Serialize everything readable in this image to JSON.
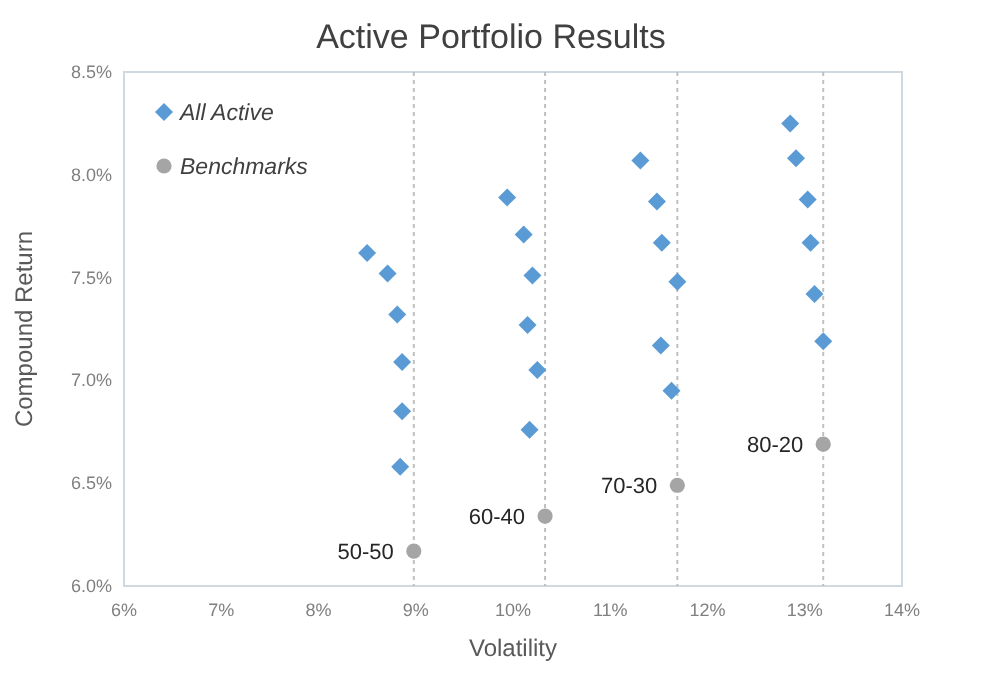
{
  "chart_data": {
    "type": "scatter",
    "title": "Active Portfolio Results",
    "xlabel": "Volatility",
    "ylabel": "Compound Return",
    "xlim": [
      6,
      14
    ],
    "xticks": [
      {
        "value": 6,
        "label": "6%"
      },
      {
        "value": 7,
        "label": "7%"
      },
      {
        "value": 8,
        "label": "8%"
      },
      {
        "value": 9,
        "label": "9%"
      },
      {
        "value": 10,
        "label": "10%"
      },
      {
        "value": 11,
        "label": "11%"
      },
      {
        "value": 12,
        "label": "12%"
      },
      {
        "value": 13,
        "label": "13%"
      },
      {
        "value": 14,
        "label": "14%"
      }
    ],
    "ylim": [
      6,
      8.5
    ],
    "yticks": [
      {
        "value": 6,
        "label": "6.0%"
      },
      {
        "value": 6.5,
        "label": "6.5%"
      },
      {
        "value": 7,
        "label": "7.0%"
      },
      {
        "value": 7.5,
        "label": "7.5%"
      },
      {
        "value": 8,
        "label": "8.0%"
      },
      {
        "value": 8.5,
        "label": "8.5%"
      }
    ],
    "grid": false,
    "legend": "top left",
    "series": [
      {
        "name": "All Active",
        "color": "#5b9bd5",
        "marker": "diamond",
        "x": [
          8.5,
          8.71,
          8.81,
          8.86,
          8.86,
          8.84,
          9.94,
          10.11,
          10.2,
          10.15,
          10.25,
          10.17,
          11.31,
          11.48,
          11.53,
          11.69,
          11.52,
          11.63,
          12.85,
          12.91,
          13.03,
          13.06,
          13.1,
          13.19
        ],
        "values": [
          7.62,
          7.52,
          7.32,
          7.09,
          6.85,
          6.58,
          7.89,
          7.71,
          7.51,
          7.27,
          7.05,
          6.76,
          8.07,
          7.87,
          7.67,
          7.48,
          7.17,
          6.95,
          8.25,
          8.08,
          7.88,
          7.67,
          7.42,
          7.19
        ]
      },
      {
        "name": "Benchmarks",
        "color": "#a5a5a5",
        "marker": "circle",
        "x": [
          8.98,
          10.33,
          11.69,
          13.19
        ],
        "values": [
          6.17,
          6.34,
          6.49,
          6.69
        ]
      }
    ],
    "annotations": [
      {
        "text": "50-50",
        "x": 8.98,
        "y": 6.17
      },
      {
        "text": "60-40",
        "x": 10.33,
        "y": 6.34
      },
      {
        "text": "70-30",
        "x": 11.69,
        "y": 6.49
      },
      {
        "text": "80-20",
        "x": 13.19,
        "y": 6.69
      }
    ],
    "ref_lines": [
      {
        "axis": "x",
        "value": 8.98,
        "line_style": "dotted",
        "color": "#bfbfbf"
      },
      {
        "axis": "x",
        "value": 10.33,
        "line_style": "dotted",
        "color": "#bfbfbf"
      },
      {
        "axis": "x",
        "value": 11.69,
        "line_style": "dotted",
        "color": "#bfbfbf"
      },
      {
        "axis": "x",
        "value": 13.19,
        "line_style": "dotted",
        "color": "#bfbfbf"
      }
    ]
  }
}
